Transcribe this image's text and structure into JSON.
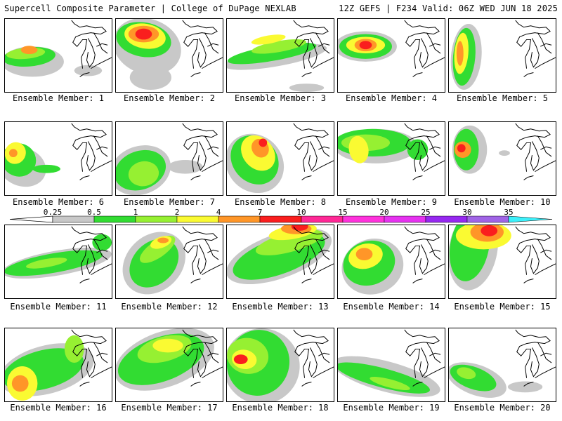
{
  "header": {
    "left_title": "Supercell Composite Parameter | College of DuPage NEXLAB",
    "right_title": "12Z GEFS | F234 Valid: 06Z WED JUN 18 2025"
  },
  "members": [
    {
      "label": "Ensemble Member: 1"
    },
    {
      "label": "Ensemble Member: 2"
    },
    {
      "label": "Ensemble Member: 3"
    },
    {
      "label": "Ensemble Member: 4"
    },
    {
      "label": "Ensemble Member: 5"
    },
    {
      "label": "Ensemble Member: 6"
    },
    {
      "label": "Ensemble Member: 7"
    },
    {
      "label": "Ensemble Member: 8"
    },
    {
      "label": "Ensemble Member: 9"
    },
    {
      "label": "Ensemble Member: 10"
    },
    {
      "label": "Ensemble Member: 11"
    },
    {
      "label": "Ensemble Member: 12"
    },
    {
      "label": "Ensemble Member: 13"
    },
    {
      "label": "Ensemble Member: 14"
    },
    {
      "label": "Ensemble Member: 15"
    },
    {
      "label": "Ensemble Member: 16"
    },
    {
      "label": "Ensemble Member: 17"
    },
    {
      "label": "Ensemble Member: 18"
    },
    {
      "label": "Ensemble Member: 19"
    },
    {
      "label": "Ensemble Member: 20"
    }
  ],
  "colorbar": {
    "ticks": [
      "0.25",
      "0.5",
      "1",
      "2",
      "4",
      "7",
      "10",
      "15",
      "20",
      "25",
      "30",
      "35"
    ],
    "colors": [
      "#c8c8c8",
      "#32dc32",
      "#96f032",
      "#fafa32",
      "#ff9628",
      "#fa1e1e",
      "#ff2896",
      "#ff32dc",
      "#e632f0",
      "#9628f0",
      "#a064e6",
      "#3cf0fa"
    ]
  },
  "map_colors": {
    "land": "#ffffff",
    "coast": "#000000"
  }
}
